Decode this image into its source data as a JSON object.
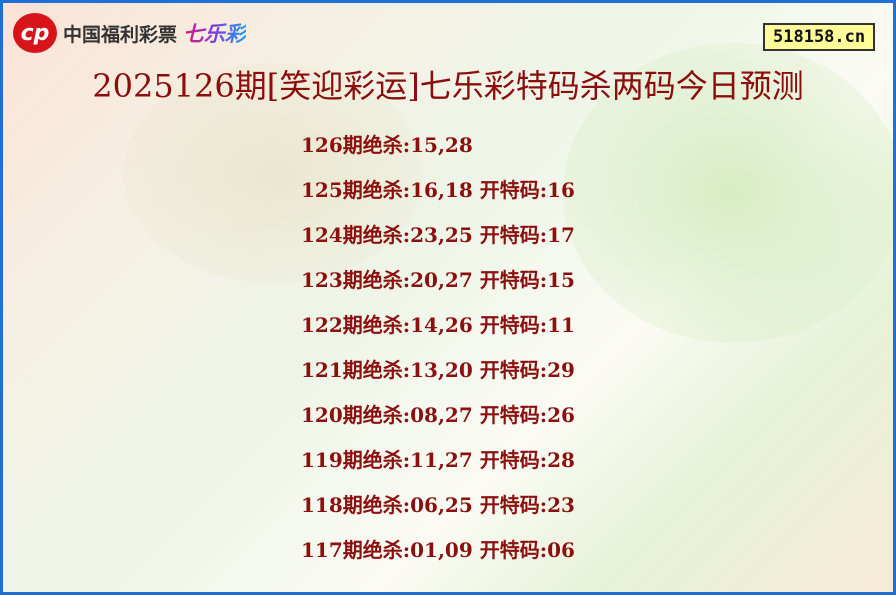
{
  "logo": {
    "mark": "cp",
    "org": "中国福利彩票",
    "brand": "七乐彩"
  },
  "site": "518158.cn",
  "title": "2025126期[笑迎彩运]七乐彩特码杀两码今日预测",
  "rows": [
    "126期绝杀:15,28",
    "125期绝杀:16,18 开特码:16",
    "124期绝杀:23,25 开特码:17",
    "123期绝杀:20,27 开特码:15",
    "122期绝杀:14,26 开特码:11",
    "121期绝杀:13,20 开特码:29",
    "120期绝杀:08,27 开特码:26",
    "119期绝杀:11,27 开特码:28",
    "118期绝杀:06,25 开特码:23",
    "117期绝杀:01,09 开特码:06"
  ],
  "colors": {
    "border": "#1f6fd6",
    "title": "#8b0d0d",
    "text": "#8b1010"
  }
}
